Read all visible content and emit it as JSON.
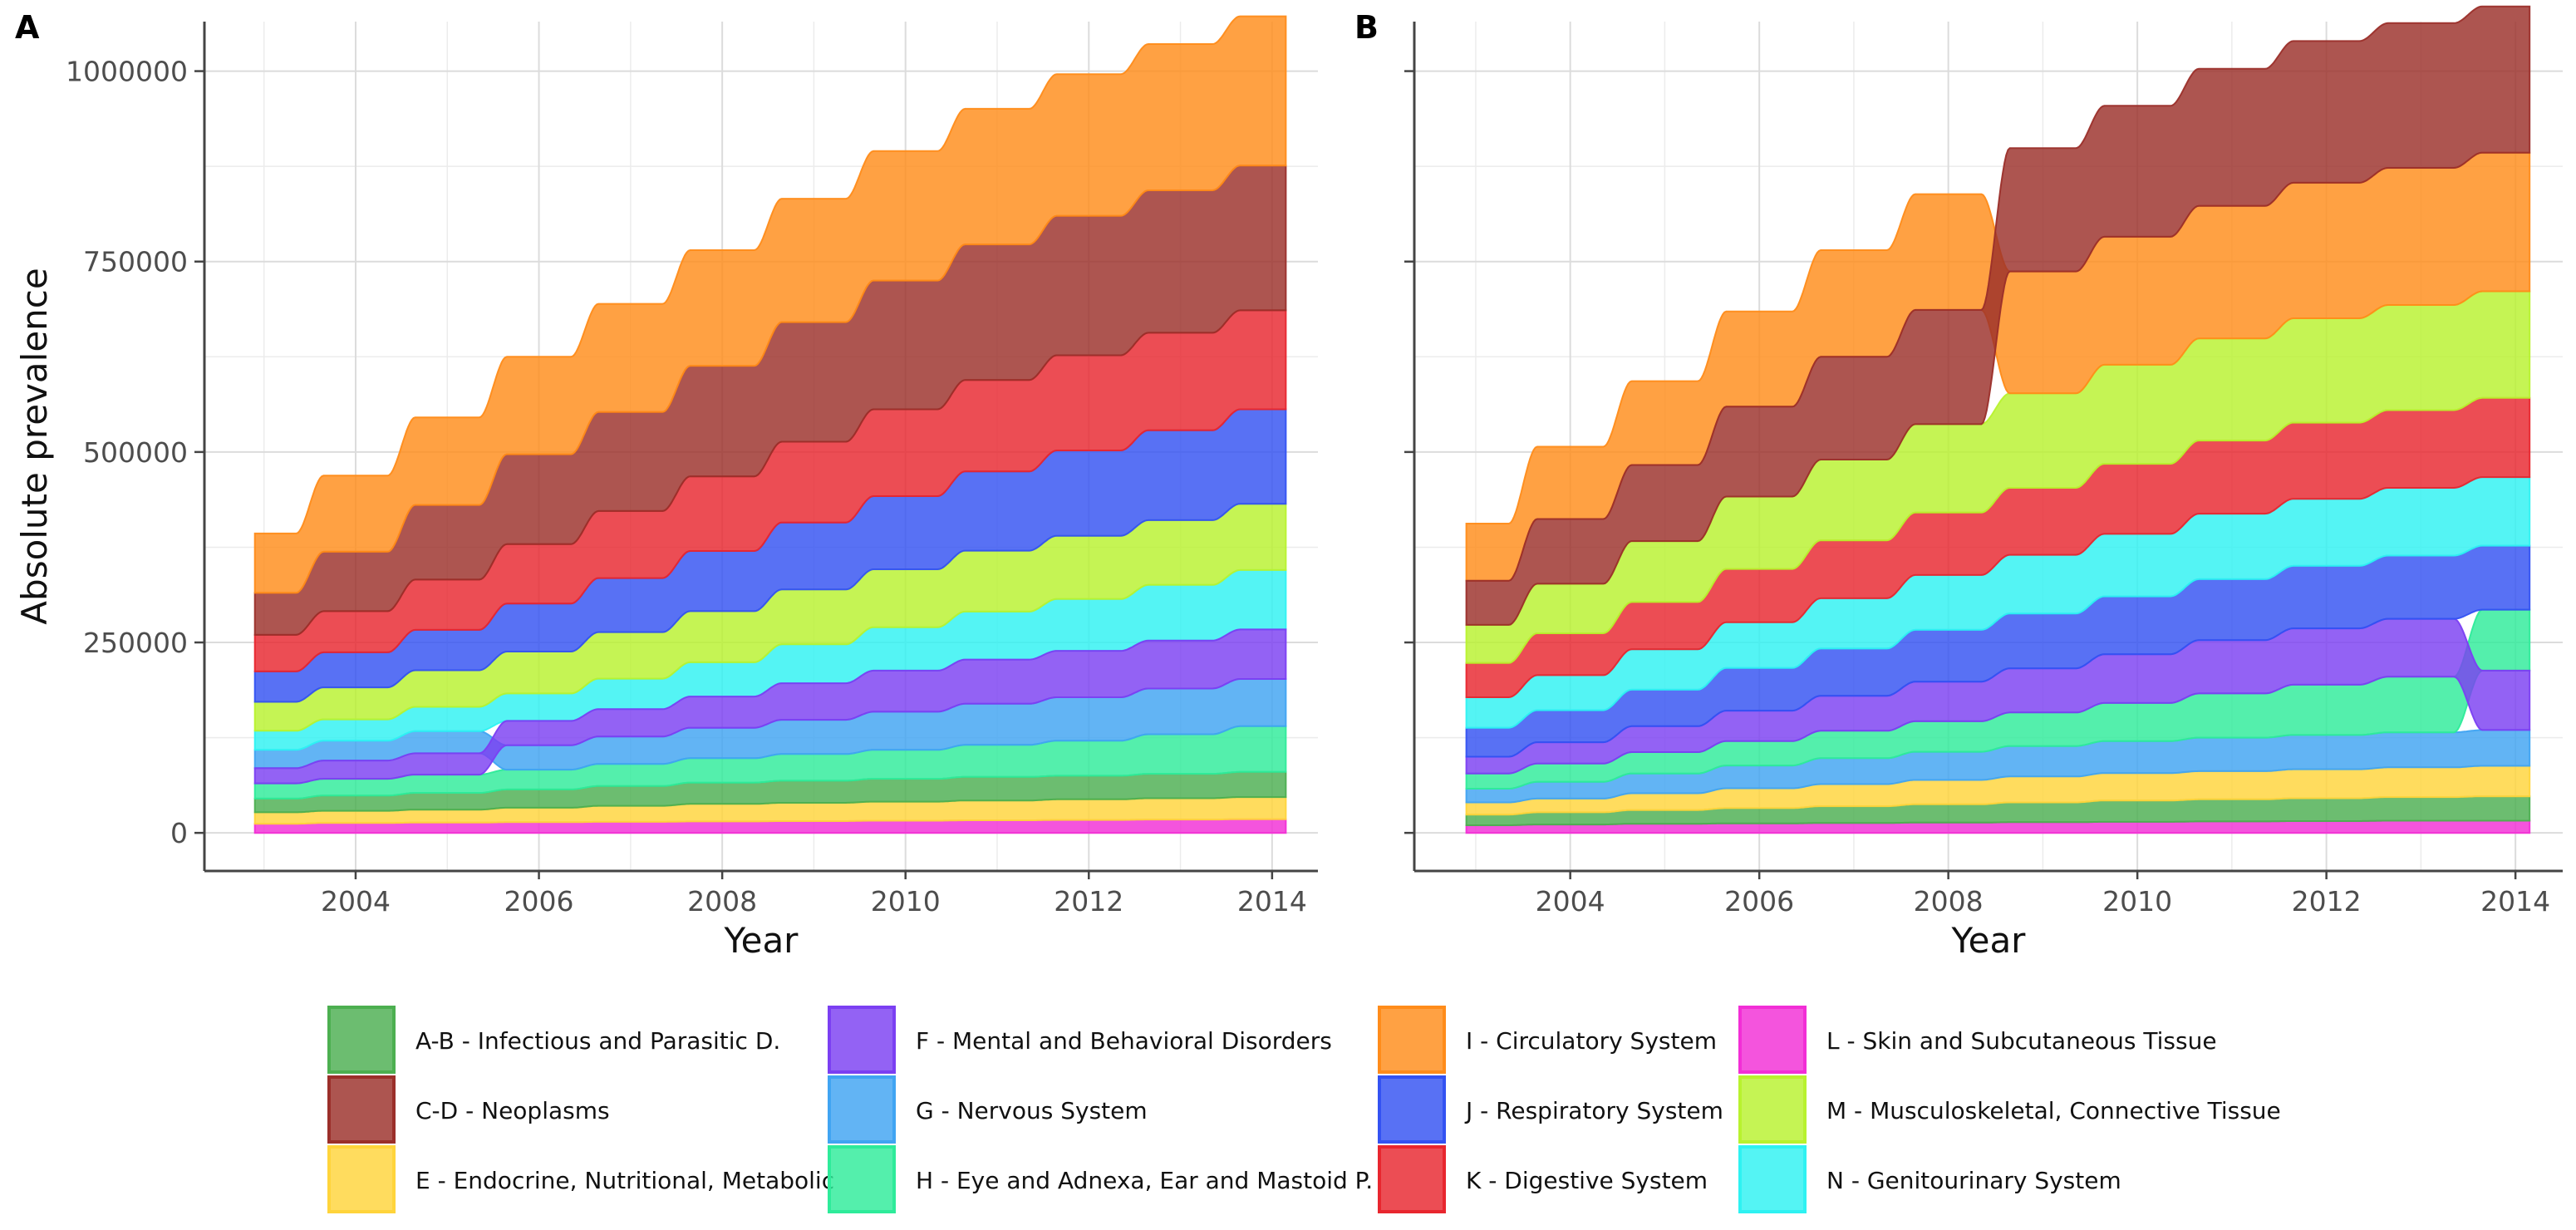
{
  "legend": {
    "items": [
      {
        "code": "A-B",
        "label": "A-B - Infectious and Parasitic D.",
        "color": "#4CAF50"
      },
      {
        "code": "C-D",
        "label": "C-D - Neoplasms",
        "color": "#9B2F2A"
      },
      {
        "code": "E",
        "label": "E - Endocrine, Nutritional, Metabolic",
        "color": "#FFD43B"
      },
      {
        "code": "F",
        "label": "F - Mental and Behavioral Disorders",
        "color": "#7B3FF2"
      },
      {
        "code": "G",
        "label": "G - Nervous System",
        "color": "#40A4F2"
      },
      {
        "code": "H",
        "label": "H - Eye and Adnexa, Ear and Mastoid P.",
        "color": "#2EEB9A"
      },
      {
        "code": "I",
        "label": "I - Circulatory System",
        "color": "#FF8C1A"
      },
      {
        "code": "J",
        "label": "J - Respiratory System",
        "color": "#3352F2"
      },
      {
        "code": "K",
        "label": "K - Digestive System",
        "color": "#E8262E"
      },
      {
        "code": "L",
        "label": "L - Skin and Subcutaneous Tissue",
        "color": "#F22ED6"
      },
      {
        "code": "M",
        "label": "M - Musculoskeletal, Connective Tissue",
        "color": "#B8F22E"
      },
      {
        "code": "N",
        "label": "N - Genitourinary System",
        "color": "#2EF2F2"
      }
    ]
  },
  "chart_data": [
    {
      "type": "area",
      "panel": "A",
      "panel_label": "A",
      "xlabel": "Year",
      "ylabel": "Absolute prevalence",
      "x": [
        2003,
        2004,
        2005,
        2006,
        2007,
        2008,
        2009,
        2010,
        2011,
        2012,
        2013,
        2014
      ],
      "x_ticks": [
        "2004",
        "2006",
        "2008",
        "2010",
        "2012",
        "2014"
      ],
      "y_ticks": [
        "0",
        "250000",
        "500000",
        "750000",
        "1000000"
      ],
      "xlim": [
        2002.35,
        2014.5
      ],
      "ylim": [
        -50000,
        1065000
      ],
      "bump_chart": true,
      "series": [
        {
          "code": "L",
          "values": [
            12000,
            13000,
            13500,
            14000,
            14500,
            15000,
            15500,
            16000,
            16500,
            17000,
            17500,
            18000
          ]
        },
        {
          "code": "E",
          "values": [
            15000,
            16000,
            17000,
            19000,
            21000,
            23000,
            24000,
            25000,
            26000,
            27000,
            28000,
            29000
          ]
        },
        {
          "code": "A-B",
          "values": [
            18000,
            20000,
            22000,
            24000,
            26000,
            28000,
            29000,
            30000,
            31000,
            31000,
            32000,
            33000
          ]
        },
        {
          "code": "H",
          "values": [
            20000,
            22000,
            24000,
            26000,
            29000,
            32000,
            35000,
            38000,
            42000,
            46000,
            52000,
            60000
          ]
        },
        {
          "code": "G",
          "values": [
            24000,
            26000,
            29000,
            32000,
            36000,
            40000,
            45000,
            50000,
            54000,
            57000,
            60000,
            62000
          ]
        },
        {
          "code": "N",
          "values": [
            25000,
            28000,
            32000,
            36000,
            40000,
            45000,
            51000,
            57000,
            63000,
            68000,
            73000,
            78000
          ]
        },
        {
          "code": "F",
          "values": [
            20000,
            24000,
            28000,
            32000,
            36000,
            41000,
            48000,
            54000,
            58000,
            61000,
            63000,
            65000
          ]
        },
        {
          "code": "M",
          "values": [
            38000,
            42000,
            48000,
            55000,
            61000,
            67000,
            72000,
            76000,
            80000,
            83000,
            85000,
            87000
          ]
        },
        {
          "code": "J",
          "values": [
            40000,
            46000,
            53000,
            63000,
            71000,
            79000,
            88000,
            96000,
            104000,
            112000,
            118000,
            124000
          ]
        },
        {
          "code": "K",
          "values": [
            48000,
            54000,
            66000,
            78000,
            88000,
            98000,
            106000,
            114000,
            120000,
            125000,
            128000,
            130000
          ]
        },
        {
          "code": "C-D",
          "values": [
            55000,
            78000,
            98000,
            118000,
            130000,
            145000,
            157000,
            169000,
            178000,
            183000,
            187000,
            190000
          ]
        },
        {
          "code": "I",
          "values": [
            78000,
            100000,
            115000,
            128000,
            142000,
            152000,
            162000,
            170000,
            178000,
            186000,
            192000,
            196000
          ]
        }
      ],
      "notes_visual": "Order of stacked bands changes over time (bump chart): band colors swap positions between years."
    },
    {
      "type": "area",
      "panel": "B",
      "panel_label": "B",
      "xlabel": "Year",
      "ylabel": "",
      "x": [
        2003,
        2004,
        2005,
        2006,
        2007,
        2008,
        2009,
        2010,
        2011,
        2012,
        2013,
        2014
      ],
      "x_ticks": [
        "2004",
        "2006",
        "2008",
        "2010",
        "2012",
        "2014"
      ],
      "y_ticks": [
        "",
        "",
        "",
        "",
        ""
      ],
      "xlim": [
        2002.35,
        2014.5
      ],
      "ylim": [
        -50000,
        1065000
      ],
      "bump_chart": true,
      "series": [
        {
          "code": "L",
          "values": [
            10000,
            11000,
            12000,
            12500,
            13000,
            13500,
            14000,
            14500,
            15000,
            15500,
            16000,
            16000
          ]
        },
        {
          "code": "A-B",
          "values": [
            14000,
            16000,
            18000,
            20000,
            22000,
            24000,
            26000,
            28000,
            29000,
            30000,
            31000,
            32000
          ]
        },
        {
          "code": "E",
          "values": [
            16000,
            18000,
            22000,
            26000,
            29000,
            32000,
            34000,
            36000,
            37000,
            38000,
            39000,
            40000
          ]
        },
        {
          "code": "G",
          "values": [
            18000,
            22000,
            26000,
            30000,
            34000,
            37000,
            40000,
            42000,
            44000,
            45000,
            46000,
            47000
          ]
        },
        {
          "code": "H",
          "values": [
            20000,
            24000,
            28000,
            32000,
            36000,
            40000,
            44000,
            50000,
            58000,
            66000,
            73000,
            80000
          ]
        },
        {
          "code": "F",
          "values": [
            22000,
            28000,
            34000,
            40000,
            46000,
            52000,
            58000,
            64000,
            70000,
            74000,
            76000,
            78000
          ]
        },
        {
          "code": "J",
          "values": [
            38000,
            42000,
            48000,
            56000,
            62000,
            68000,
            72000,
            76000,
            80000,
            82000,
            83000,
            84000
          ]
        },
        {
          "code": "N",
          "values": [
            40000,
            46000,
            53000,
            60000,
            66000,
            72000,
            77000,
            82000,
            86000,
            88000,
            89000,
            90000
          ]
        },
        {
          "code": "K",
          "values": [
            45000,
            55000,
            62000,
            70000,
            76000,
            82000,
            88000,
            92000,
            96000,
            100000,
            102000,
            104000
          ]
        },
        {
          "code": "M",
          "values": [
            50000,
            65000,
            80000,
            95000,
            106000,
            116000,
            124000,
            130000,
            134000,
            137000,
            138000,
            140000
          ]
        },
        {
          "code": "I",
          "values": [
            75000,
            95000,
            110000,
            125000,
            140000,
            152000,
            160000,
            168000,
            174000,
            178000,
            180000,
            182000
          ]
        },
        {
          "code": "C-D",
          "values": [
            58000,
            85000,
            100000,
            118000,
            135000,
            150000,
            162000,
            172000,
            180000,
            186000,
            190000,
            192000
          ]
        }
      ],
      "notes_visual": "Order of stacked bands changes over time (bump chart): band colors swap positions between years."
    }
  ]
}
